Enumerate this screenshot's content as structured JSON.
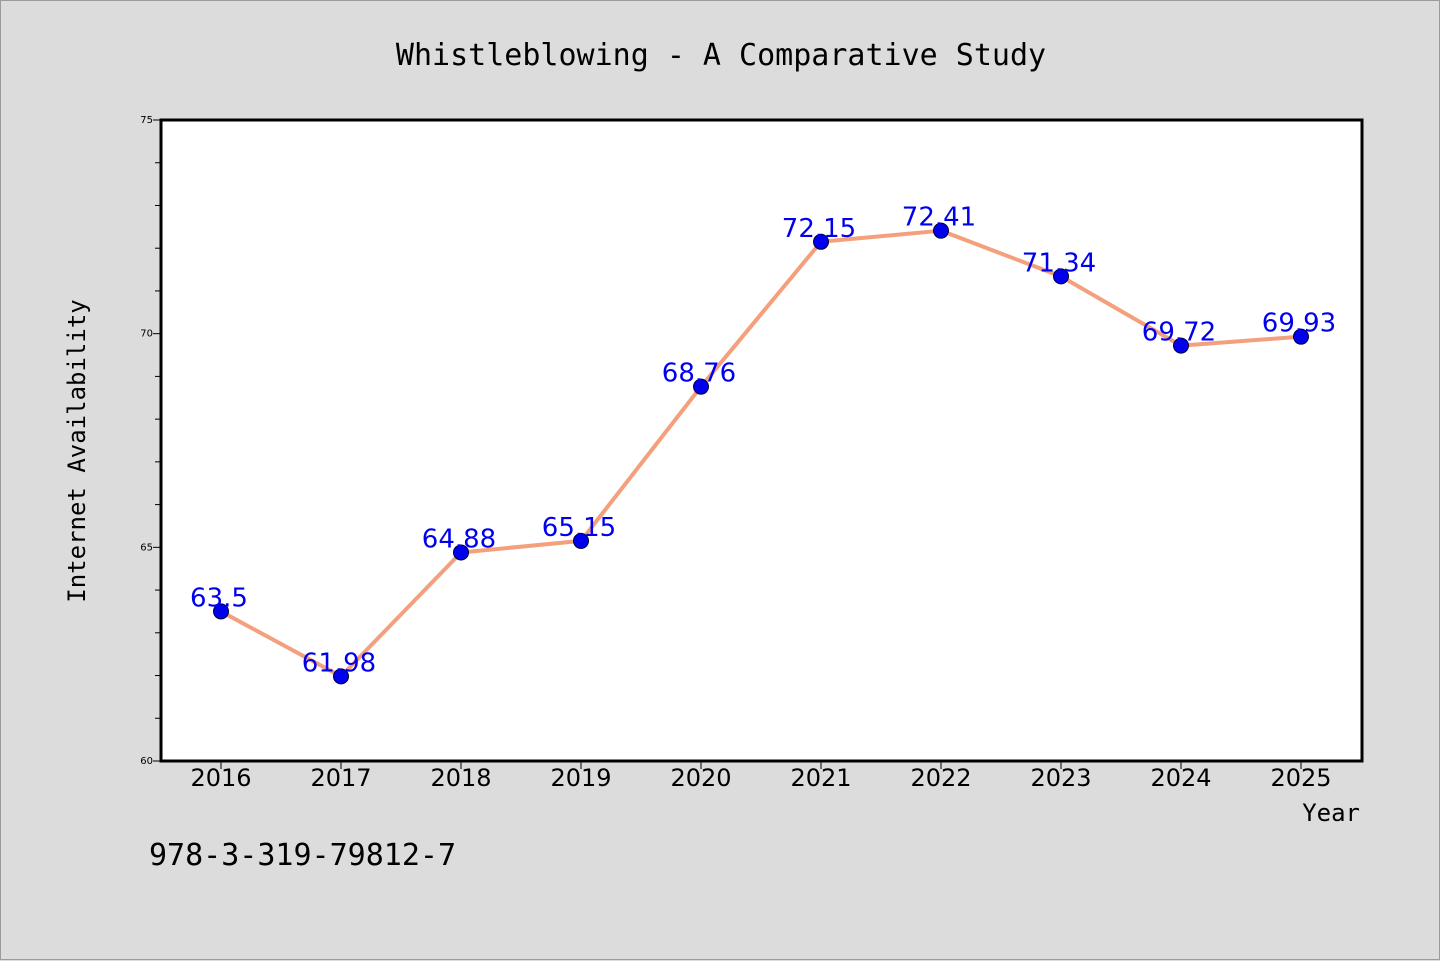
{
  "page": {
    "identifier": "978-3-319-79812-7"
  },
  "colors": {
    "background": "#dcdcdc",
    "plot_background": "#ffffff",
    "line": "#f4a07c",
    "marker": "#0000ee",
    "data_label": "#0000ee",
    "axis": "#000000"
  },
  "chart_data": {
    "type": "line",
    "title": "Whistleblowing - A Comparative Study",
    "xlabel": "Year",
    "ylabel": "Internet Availability",
    "categories": [
      "2016",
      "2017",
      "2018",
      "2019",
      "2020",
      "2021",
      "2022",
      "2023",
      "2024",
      "2025"
    ],
    "series": [
      {
        "values": [
          63.5,
          61.98,
          64.88,
          65.15,
          68.76,
          72.15,
          72.41,
          71.34,
          69.72,
          69.93
        ]
      }
    ],
    "data_labels": [
      "63.5",
      "61.98",
      "64.88",
      "65.15",
      "68.76",
      "72.15",
      "72.41",
      "71.34",
      "69.72",
      "69.93"
    ],
    "ylim": [
      60,
      75
    ],
    "y_ticks": [
      "60",
      "65",
      "70",
      "75"
    ],
    "y_minor_step": 1,
    "grid": false,
    "legend": "none"
  }
}
